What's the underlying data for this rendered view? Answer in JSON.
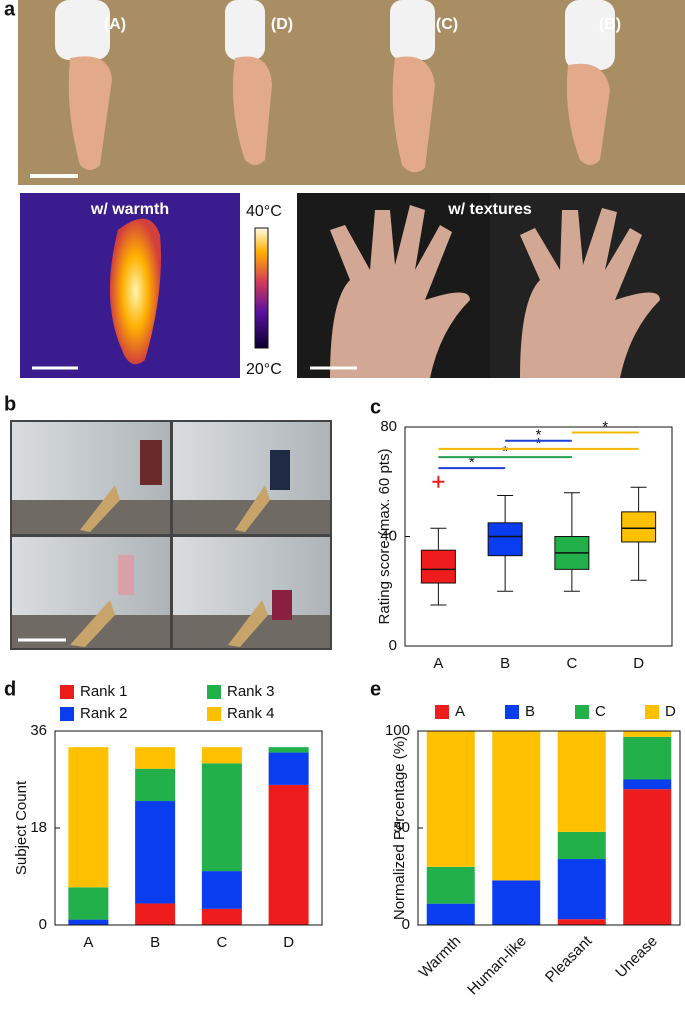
{
  "panel_labels": [
    "a",
    "b",
    "c",
    "d",
    "e"
  ],
  "photos": {
    "hand_labels": [
      "(A)",
      "(D)",
      "(C)",
      "(B)"
    ],
    "thermal_title": "w/ warmth",
    "colorbar_max": "40°C",
    "colorbar_min": "20°C",
    "texture_title": "w/ textures"
  },
  "chart_data": [
    {
      "type": "box",
      "ylabel": "Rating score (max. 60 pts)",
      "categories": [
        "A",
        "B",
        "C",
        "D"
      ],
      "ylim": [
        0,
        80
      ],
      "yticks": [
        0,
        40,
        80
      ],
      "boxes": [
        {
          "low": 15,
          "q1": 23,
          "median": 28,
          "q3": 35,
          "high": 43,
          "outliers": [
            60
          ],
          "color": "#ee1c1c"
        },
        {
          "low": 20,
          "q1": 33,
          "median": 40,
          "q3": 45,
          "high": 55,
          "outliers": [],
          "color": "#0a3cf0"
        },
        {
          "low": 20,
          "q1": 28,
          "median": 34,
          "q3": 40,
          "high": 56,
          "outliers": [],
          "color": "#22b04b"
        },
        {
          "low": 24,
          "q1": 38,
          "median": 43,
          "q3": 49,
          "high": 58,
          "outliers": [],
          "color": "#ffc000"
        }
      ],
      "outlier_color": "#ee1c1c",
      "significance": [
        {
          "pair": [
            "A",
            "B"
          ],
          "y": 65,
          "label": "*",
          "color": "#1f3fd8"
        },
        {
          "pair": [
            "A",
            "C"
          ],
          "y": 69,
          "label": "*",
          "color": "#22a04b"
        },
        {
          "pair": [
            "A",
            "D"
          ],
          "y": 72,
          "label": "*",
          "color": "#f5b800"
        },
        {
          "pair": [
            "B",
            "C"
          ],
          "y": 75,
          "label": "*",
          "color": "#1f3fd8"
        },
        {
          "pair": [
            "C",
            "D"
          ],
          "y": 78,
          "label": "*",
          "color": "#f5b800"
        }
      ]
    },
    {
      "type": "bar",
      "stacked": true,
      "ylabel": "Subject Count",
      "categories": [
        "A",
        "B",
        "C",
        "D"
      ],
      "ylim": [
        0,
        36
      ],
      "yticks": [
        0,
        18,
        36
      ],
      "series": [
        {
          "name": "Rank 1",
          "color": "#ee1c1c",
          "values": [
            0,
            4,
            3,
            26
          ]
        },
        {
          "name": "Rank 2",
          "color": "#0a3cf0",
          "values": [
            1,
            19,
            7,
            6
          ]
        },
        {
          "name": "Rank 3",
          "color": "#22b04b",
          "values": [
            6,
            6,
            20,
            1
          ]
        },
        {
          "name": "Rank 4",
          "color": "#ffc000",
          "values": [
            26,
            4,
            3,
            0
          ]
        }
      ]
    },
    {
      "type": "bar",
      "stacked": true,
      "ylabel": "Normalized Percentage (%)",
      "categories": [
        "Warmth",
        "Human-like",
        "Pleasant",
        "Unease"
      ],
      "ylim": [
        0,
        100
      ],
      "yticks": [
        0,
        50,
        100
      ],
      "series": [
        {
          "name": "A",
          "color": "#ee1c1c",
          "values": [
            0,
            0,
            3,
            70
          ]
        },
        {
          "name": "B",
          "color": "#0a3cf0",
          "values": [
            11,
            23,
            31,
            5
          ]
        },
        {
          "name": "C",
          "color": "#22b04b",
          "values": [
            19,
            0,
            14,
            22
          ]
        },
        {
          "name": "D",
          "color": "#ffc000",
          "values": [
            70,
            77,
            52,
            3
          ]
        }
      ]
    }
  ]
}
